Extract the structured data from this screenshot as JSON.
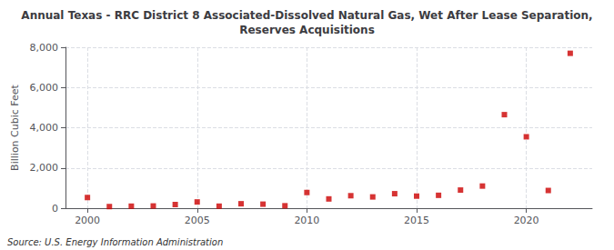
{
  "chart_data": {
    "type": "scatter",
    "title": "Annual Texas - RRC District 8 Associated-Dissolved Natural Gas, Wet After Lease Separation,\nReserves Acquisitions",
    "ylabel": "Billion Cubic Feet",
    "annotations": [
      "Source: U.S. Energy Information Administration"
    ],
    "x": [
      2000,
      2001,
      2002,
      2003,
      2004,
      2005,
      2006,
      2007,
      2008,
      2009,
      2010,
      2011,
      2012,
      2013,
      2014,
      2015,
      2016,
      2017,
      2018,
      2019,
      2020,
      2021,
      2022
    ],
    "values": [
      530,
      80,
      100,
      110,
      180,
      310,
      100,
      220,
      200,
      120,
      780,
      460,
      620,
      560,
      720,
      600,
      640,
      900,
      1100,
      4650,
      3550,
      880,
      7700
    ],
    "color": "#cc0000",
    "marker": "square",
    "xlim": [
      1999,
      2023
    ],
    "xticks": [
      2000,
      2005,
      2010,
      2015,
      2020
    ],
    "ylim": [
      0,
      8000
    ],
    "yticks": [
      0,
      {
        "value": 2000,
        "label": "2,000"
      },
      {
        "value": 4000,
        "label": "4,000"
      },
      {
        "value": 6000,
        "label": "6,000"
      },
      {
        "value": 8000,
        "label": "8,000"
      }
    ],
    "grid": true
  }
}
